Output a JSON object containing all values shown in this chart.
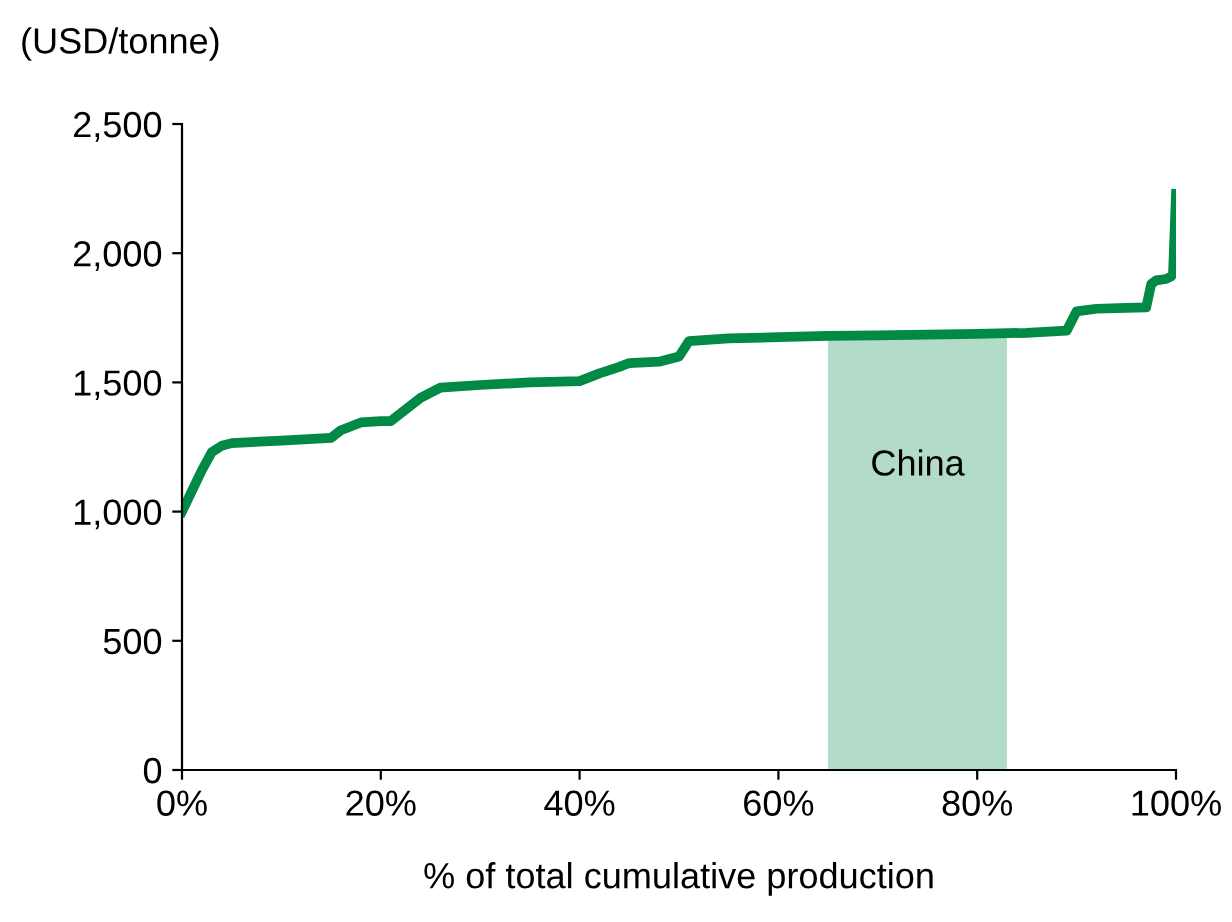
{
  "chart_data": {
    "type": "line",
    "ylabel": "(USD/tonne)",
    "xlabel": "% of total cumulative production",
    "xlim": [
      0,
      100
    ],
    "xticks": [
      {
        "value": 0,
        "label": "0%"
      },
      {
        "value": 20,
        "label": "20%"
      },
      {
        "value": 40,
        "label": "40%"
      },
      {
        "value": 60,
        "label": "60%"
      },
      {
        "value": 80,
        "label": "80%"
      },
      {
        "value": 100,
        "label": "100%"
      }
    ],
    "ylim": [
      0,
      2500
    ],
    "yticks": [
      {
        "value": 0,
        "label": "0"
      },
      {
        "value": 500,
        "label": "500"
      },
      {
        "value": 1000,
        "label": "1,000"
      },
      {
        "value": 1500,
        "label": "1,500"
      },
      {
        "value": 2000,
        "label": "2,000"
      },
      {
        "value": 2500,
        "label": "2,500"
      }
    ],
    "grid": false,
    "legend": false,
    "series": [
      {
        "color": "#008a45",
        "line_style": "solid",
        "x": [
          0,
          1,
          2,
          3,
          4,
          5,
          10,
          15,
          16,
          18,
          20,
          21,
          22,
          24,
          26,
          30,
          35,
          40,
          42,
          44,
          45,
          48,
          50,
          51,
          55,
          60,
          65,
          70,
          80,
          85,
          89,
          90,
          92,
          95,
          97,
          97.5,
          98,
          99,
          99.5,
          99.7,
          100
        ],
        "values": [
          1000,
          1080,
          1160,
          1230,
          1255,
          1265,
          1275,
          1285,
          1315,
          1345,
          1350,
          1350,
          1380,
          1440,
          1480,
          1490,
          1500,
          1505,
          1535,
          1560,
          1575,
          1580,
          1600,
          1660,
          1670,
          1675,
          1680,
          1682,
          1688,
          1692,
          1700,
          1775,
          1785,
          1788,
          1790,
          1880,
          1895,
          1900,
          1910,
          1920,
          2230
        ]
      }
    ],
    "bands": [
      {
        "axis": "x",
        "from": 65,
        "to": 83,
        "label": "China",
        "color": "#b2dcc7"
      }
    ]
  }
}
